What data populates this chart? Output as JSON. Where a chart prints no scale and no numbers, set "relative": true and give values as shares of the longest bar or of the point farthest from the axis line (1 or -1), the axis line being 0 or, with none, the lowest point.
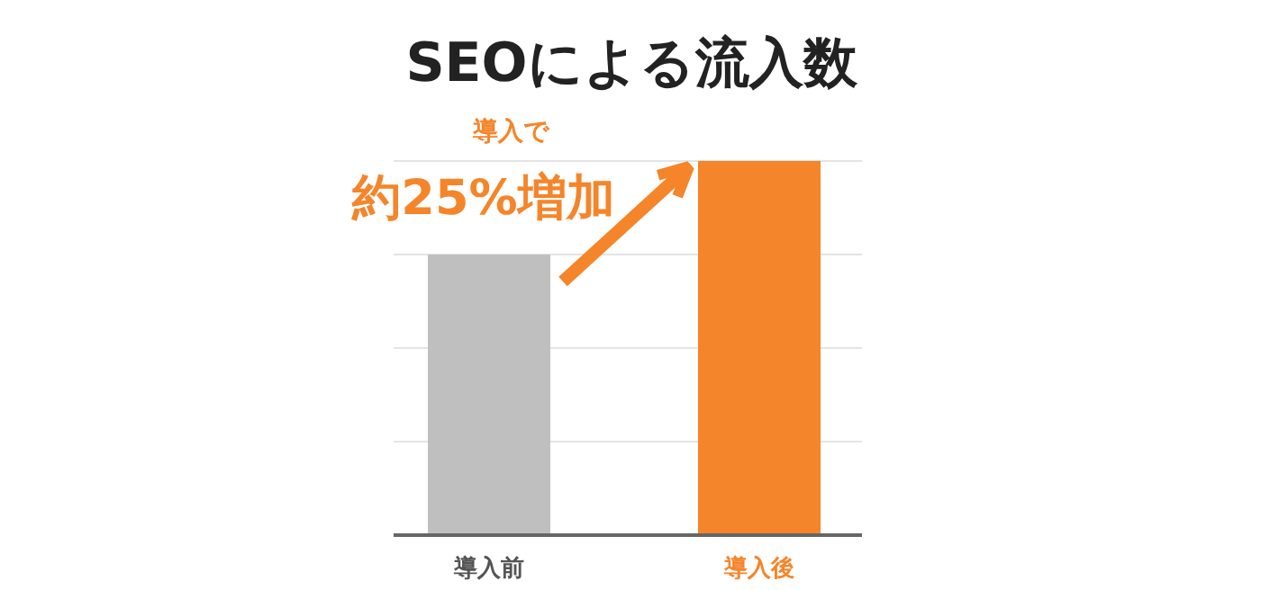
{
  "chart_data": {
    "type": "bar",
    "title": "SEOによる流入数",
    "categories": [
      "導入前",
      "導入後"
    ],
    "relative": true,
    "colors": [
      "#c0bfc0",
      "#f5852a"
    ],
    "values": [
      0.75,
      1
    ],
    "grid": "y",
    "annotations": [
      "導入で",
      "約25%増加"
    ]
  }
}
